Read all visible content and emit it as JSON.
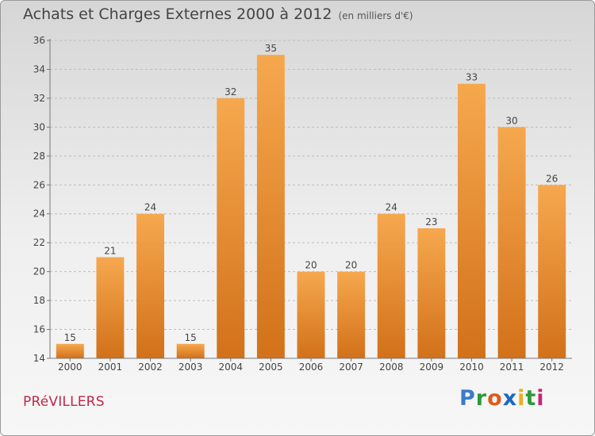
{
  "header": {
    "title": "Achats et Charges Externes 2000 à 2012",
    "subtitle": "(en milliers d'€)"
  },
  "footer": {
    "commune": "PRéVILLERS",
    "logo": [
      "P",
      "r",
      "o",
      "x",
      "i",
      "t",
      "i"
    ],
    "logo_colors": [
      "#3a7cc8",
      "#2a9a3a",
      "#e05a1a",
      "#1a68c0",
      "#e8b020",
      "#2a9a3a",
      "#c02878"
    ]
  },
  "colors": {
    "bar_light": "#f6a84e",
    "bar_dark": "#d2711a",
    "axis": "#777777",
    "grid": "#bdbdbd",
    "text": "#444444"
  },
  "chart_data": {
    "type": "bar",
    "title": "Achats et Charges Externes 2000 à 2012",
    "subtitle": "(en milliers d'€)",
    "categories": [
      "2000",
      "2001",
      "2002",
      "2003",
      "2004",
      "2005",
      "2006",
      "2007",
      "2008",
      "2009",
      "2010",
      "2011",
      "2012"
    ],
    "values": [
      15,
      21,
      24,
      15,
      32,
      35,
      20,
      20,
      24,
      23,
      33,
      30,
      26
    ],
    "ylim": [
      14,
      36
    ],
    "yticks": [
      14,
      16,
      18,
      20,
      22,
      24,
      26,
      28,
      30,
      32,
      34,
      36
    ],
    "grid": "horizontal-dashed",
    "legend": "none"
  }
}
